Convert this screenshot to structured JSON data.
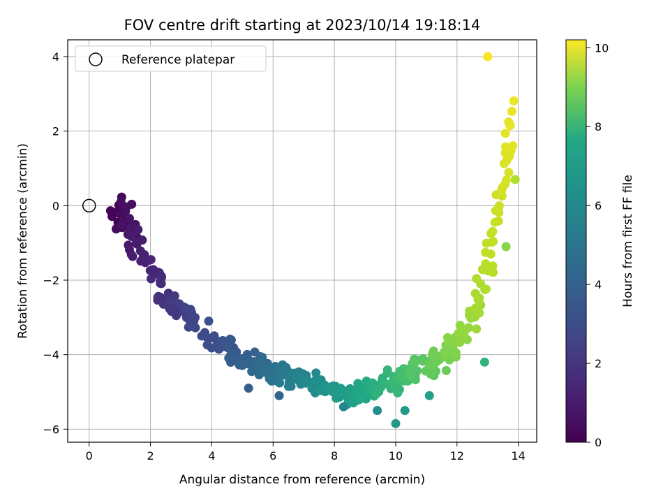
{
  "chart_data": {
    "type": "scatter",
    "title": "FOV centre drift starting at 2023/10/14 19:18:14",
    "xlabel": "Angular distance from reference (arcmin)",
    "ylabel": "Rotation from reference (arcmin)",
    "xlim": [
      -0.7,
      14.6
    ],
    "ylim": [
      -6.35,
      4.45
    ],
    "xticks": [
      0,
      2,
      4,
      6,
      8,
      10,
      12,
      14
    ],
    "yticks": [
      -6,
      -4,
      -2,
      0,
      2,
      4
    ],
    "grid": true,
    "legend": {
      "label": "Reference platepar",
      "placement": "top-left"
    },
    "reference_point": {
      "x": 0,
      "y": 0
    },
    "colorbar": {
      "label": "Hours from first FF file",
      "range": [
        0,
        10.2
      ],
      "ticks": [
        0,
        2,
        4,
        6,
        8,
        10
      ],
      "colormap": "viridis"
    },
    "series": [
      {
        "x_center": [
          0.7,
          1.0,
          1.0,
          1.1,
          1.2,
          1.2,
          1.3,
          1.3,
          1.4,
          1.5,
          1.5,
          1.6,
          1.7,
          1.8,
          2.0,
          2.1,
          2.2,
          2.3,
          2.4,
          2.5,
          2.6,
          2.7,
          2.8,
          2.9,
          3.0,
          3.1,
          3.2,
          3.3,
          3.4,
          3.5,
          4.0,
          4.1,
          4.2,
          4.3,
          4.4,
          4.5,
          4.6,
          4.7,
          4.8,
          4.9,
          5.0,
          5.1,
          5.2,
          5.3,
          5.4,
          5.5,
          5.6,
          5.7,
          5.8,
          5.9,
          6.0,
          6.1,
          6.2,
          6.3,
          6.4,
          6.5,
          6.6,
          6.7,
          6.8,
          6.9,
          7.0,
          7.1,
          7.2,
          7.3,
          7.4,
          7.5,
          7.6,
          7.7,
          7.8,
          7.9,
          8.0,
          8.1,
          8.2,
          8.3,
          8.4,
          8.5,
          8.6,
          8.7,
          8.8,
          8.9,
          9.0,
          9.1,
          9.2,
          9.3,
          9.4,
          9.5,
          9.6,
          9.7,
          9.8,
          9.9,
          10.0,
          10.1,
          10.2,
          10.3,
          10.4,
          10.5,
          10.6,
          10.7,
          10.8,
          10.9,
          11.0,
          11.1,
          11.2,
          11.3,
          11.4,
          11.5,
          11.6,
          11.7,
          11.8,
          11.9,
          12.0,
          12.1,
          12.2,
          12.3,
          12.4,
          12.5,
          12.6,
          12.7,
          12.8,
          12.9,
          13.0,
          13.1,
          13.2,
          13.3,
          13.4,
          13.5,
          13.6,
          13.65,
          13.7,
          13.75,
          13.8
        ],
        "y_center": [
          -0.3,
          -0.5,
          0.1,
          -0.4,
          -0.6,
          0.2,
          -0.8,
          -0.3,
          -1.0,
          -1.1,
          -0.7,
          -1.2,
          -1.3,
          -1.4,
          -1.7,
          -1.9,
          -2.0,
          -2.2,
          -2.4,
          -2.5,
          -2.5,
          -2.6,
          -2.7,
          -2.8,
          -2.7,
          -2.8,
          -2.9,
          -3.0,
          -3.1,
          -3.2,
          -3.6,
          -3.6,
          -3.7,
          -3.7,
          -3.8,
          -3.8,
          -3.9,
          -4.0,
          -4.0,
          -4.1,
          -4.1,
          -4.1,
          -4.2,
          -4.2,
          -4.3,
          -4.3,
          -4.3,
          -4.4,
          -4.4,
          -4.4,
          -4.5,
          -4.5,
          -4.5,
          -4.6,
          -4.6,
          -4.6,
          -4.6,
          -4.7,
          -4.7,
          -4.7,
          -4.7,
          -4.8,
          -4.8,
          -4.8,
          -4.8,
          -4.9,
          -4.9,
          -4.9,
          -5.0,
          -5.0,
          -5.0,
          -5.0,
          -5.0,
          -5.0,
          -5.1,
          -5.1,
          -5.0,
          -5.0,
          -5.0,
          -5.0,
          -5.0,
          -4.9,
          -4.9,
          -4.9,
          -4.8,
          -4.8,
          -4.8,
          -4.8,
          -4.7,
          -4.7,
          -4.6,
          -4.6,
          -4.6,
          -4.5,
          -4.5,
          -4.5,
          -4.4,
          -4.4,
          -4.4,
          -4.3,
          -4.3,
          -4.3,
          -4.2,
          -4.2,
          -4.1,
          -4.1,
          -4.0,
          -3.9,
          -3.8,
          -3.7,
          -3.6,
          -3.5,
          -3.4,
          -3.2,
          -3.0,
          -2.8,
          -2.6,
          -2.3,
          -2.0,
          -1.7,
          -1.4,
          -1.1,
          -0.8,
          -0.4,
          0.0,
          0.5,
          0.9,
          1.3,
          1.7,
          2.1,
          2.6
        ],
        "count": 430,
        "outliers": [
          [
            13.0,
            4.0,
            10.1
          ],
          [
            10.0,
            -5.85,
            5.4
          ],
          [
            10.3,
            -5.5,
            5.5
          ],
          [
            9.4,
            -5.5,
            5.0
          ],
          [
            5.2,
            -4.9,
            3.0
          ],
          [
            6.2,
            -5.1,
            3.4
          ],
          [
            12.9,
            -4.2,
            6.6
          ],
          [
            13.6,
            -1.1,
            8.4
          ],
          [
            13.9,
            0.7,
            9.0
          ],
          [
            11.1,
            -5.1,
            5.8
          ],
          [
            3.9,
            -3.1,
            2.5
          ],
          [
            8.3,
            -5.4,
            4.6
          ]
        ]
      }
    ]
  }
}
